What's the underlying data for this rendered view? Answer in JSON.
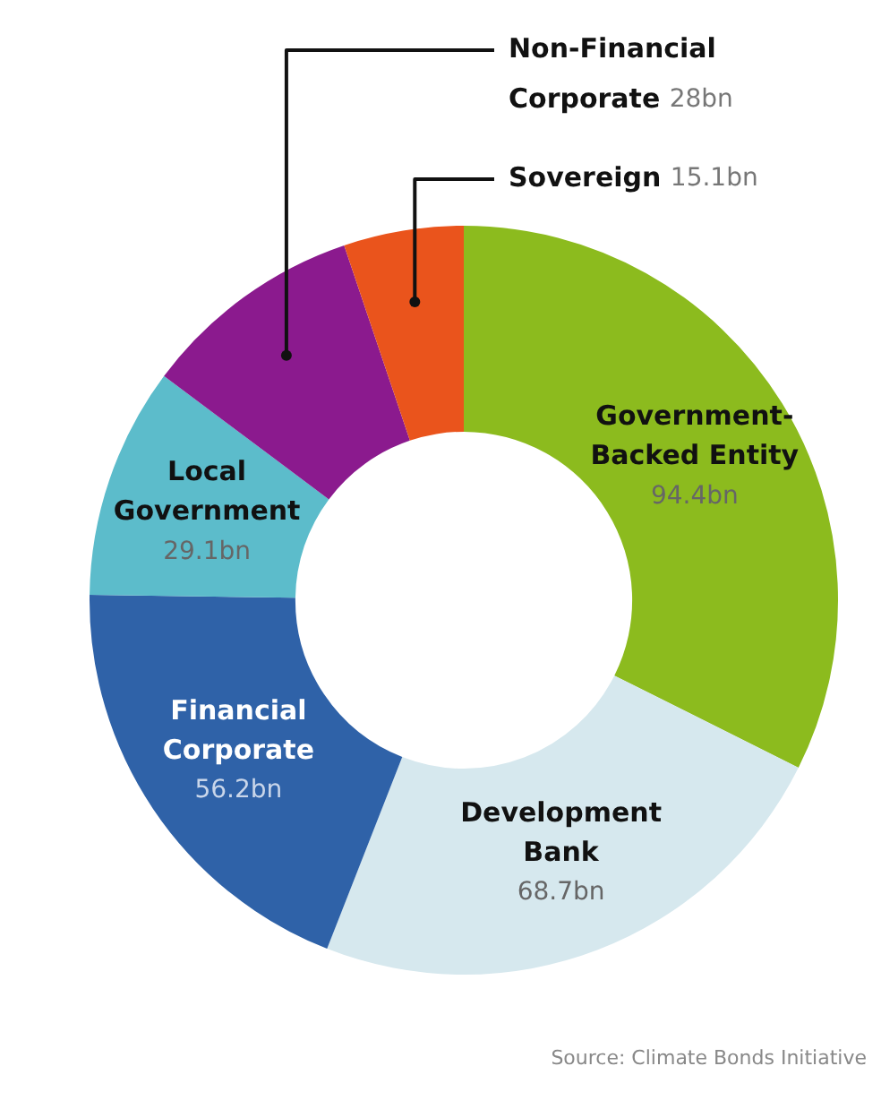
{
  "chart_data": {
    "type": "donut",
    "categories": [
      "Government-Backed Entity",
      "Development Bank",
      "Financial Corporate",
      "Local Government",
      "Non-Financial Corporate",
      "Sovereign"
    ],
    "values": [
      94.4,
      68.7,
      56.2,
      29.1,
      28,
      15.1
    ],
    "value_labels": [
      "94.4bn",
      "68.7bn",
      "56.2bn",
      "29.1bn",
      "28bn",
      "15.1bn"
    ],
    "colors": [
      "#8cbb1e",
      "#d6e8ee",
      "#2f62a8",
      "#5cbccb",
      "#8b1a8e",
      "#ea541c"
    ],
    "legend": false,
    "annotations": [
      "Source: Climate Bonds Initiative"
    ]
  }
}
